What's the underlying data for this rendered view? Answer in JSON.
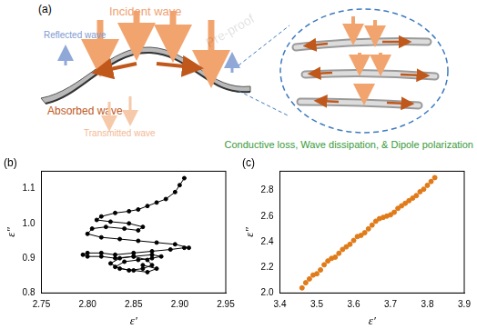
{
  "diagram": {
    "label": "(a)",
    "incident": "Incident wave",
    "reflected": "Reflected wave",
    "absorbed": "Absorbed wave",
    "transmitted": "Transmitted wave",
    "caption": "Conductive loss, Wave dissipation, & Dipole polarization"
  },
  "watermark": "Pre-proof",
  "chart_data": [
    {
      "type": "line",
      "title": "(b)",
      "x_label": "ε′",
      "y_label": "ε″",
      "color": "#000000",
      "marker": "circle",
      "grid": false,
      "x": [
        2.86,
        2.875,
        2.865,
        2.85,
        2.835,
        2.825,
        2.835,
        2.85,
        2.865,
        2.87,
        2.86,
        2.845,
        2.83,
        2.84,
        2.855,
        2.87,
        2.88,
        2.87,
        2.85,
        2.83,
        2.815,
        2.8,
        2.795,
        2.8,
        2.815,
        2.83,
        2.85,
        2.87,
        2.89,
        2.905,
        2.91,
        2.895,
        2.875,
        2.855,
        2.835,
        2.815,
        2.8,
        2.805,
        2.82,
        2.84,
        2.855,
        2.86,
        2.845,
        2.825,
        2.81,
        2.815,
        2.83,
        2.845,
        2.855,
        2.865,
        2.875,
        2.885,
        2.895,
        2.9,
        2.905
      ],
      "values": [
        0.88,
        0.87,
        0.86,
        0.865,
        0.87,
        0.885,
        0.9,
        0.905,
        0.895,
        0.88,
        0.87,
        0.865,
        0.875,
        0.89,
        0.895,
        0.9,
        0.905,
        0.91,
        0.905,
        0.9,
        0.905,
        0.905,
        0.91,
        0.915,
        0.915,
        0.91,
        0.915,
        0.92,
        0.925,
        0.93,
        0.93,
        0.94,
        0.945,
        0.95,
        0.955,
        0.96,
        0.97,
        0.985,
        0.99,
        0.985,
        0.98,
        0.99,
        1.0,
        1.005,
        1.01,
        1.02,
        1.03,
        1.035,
        1.04,
        1.05,
        1.06,
        1.07,
        1.09,
        1.11,
        1.13
      ],
      "xlim": [
        2.75,
        2.95
      ],
      "xticks": [
        2.75,
        {
          "value": 2.8,
          "label": "2.80"
        },
        2.85,
        {
          "value": 2.9,
          "label": "2.90"
        },
        2.95
      ],
      "ylim": [
        0.8,
        1.15
      ],
      "yticks": [
        0.8,
        0.9,
        {
          "value": 1,
          "label": "1.0"
        },
        1.1
      ]
    },
    {
      "type": "scatter",
      "title": "(c)",
      "x_label": "ε′",
      "y_label": "ε″",
      "color": "#e07b1a",
      "marker": "circle",
      "grid": false,
      "x": [
        3.46,
        3.47,
        3.48,
        3.49,
        3.5,
        3.51,
        3.52,
        3.53,
        3.54,
        3.55,
        3.56,
        3.57,
        3.58,
        3.59,
        3.6,
        3.61,
        3.62,
        3.63,
        3.64,
        3.65,
        3.66,
        3.67,
        3.68,
        3.69,
        3.7,
        3.71,
        3.72,
        3.73,
        3.74,
        3.75,
        3.76,
        3.77,
        3.78,
        3.79,
        3.8,
        3.81,
        3.82
      ],
      "values": [
        2.04,
        2.08,
        2.11,
        2.14,
        2.15,
        2.18,
        2.22,
        2.25,
        2.27,
        2.28,
        2.31,
        2.34,
        2.36,
        2.38,
        2.41,
        2.44,
        2.45,
        2.47,
        2.5,
        2.53,
        2.56,
        2.58,
        2.59,
        2.6,
        2.61,
        2.63,
        2.66,
        2.68,
        2.7,
        2.72,
        2.74,
        2.76,
        2.79,
        2.81,
        2.84,
        2.87,
        2.9
      ],
      "xlim": [
        3.4,
        3.9
      ],
      "xticks": [
        3.4,
        3.5,
        3.6,
        3.7,
        3.8,
        3.9
      ],
      "ylim": [
        2.0,
        2.95
      ],
      "yticks": [
        {
          "value": 2,
          "label": "2.0"
        },
        2.2,
        2.4,
        2.6,
        2.8
      ]
    }
  ]
}
